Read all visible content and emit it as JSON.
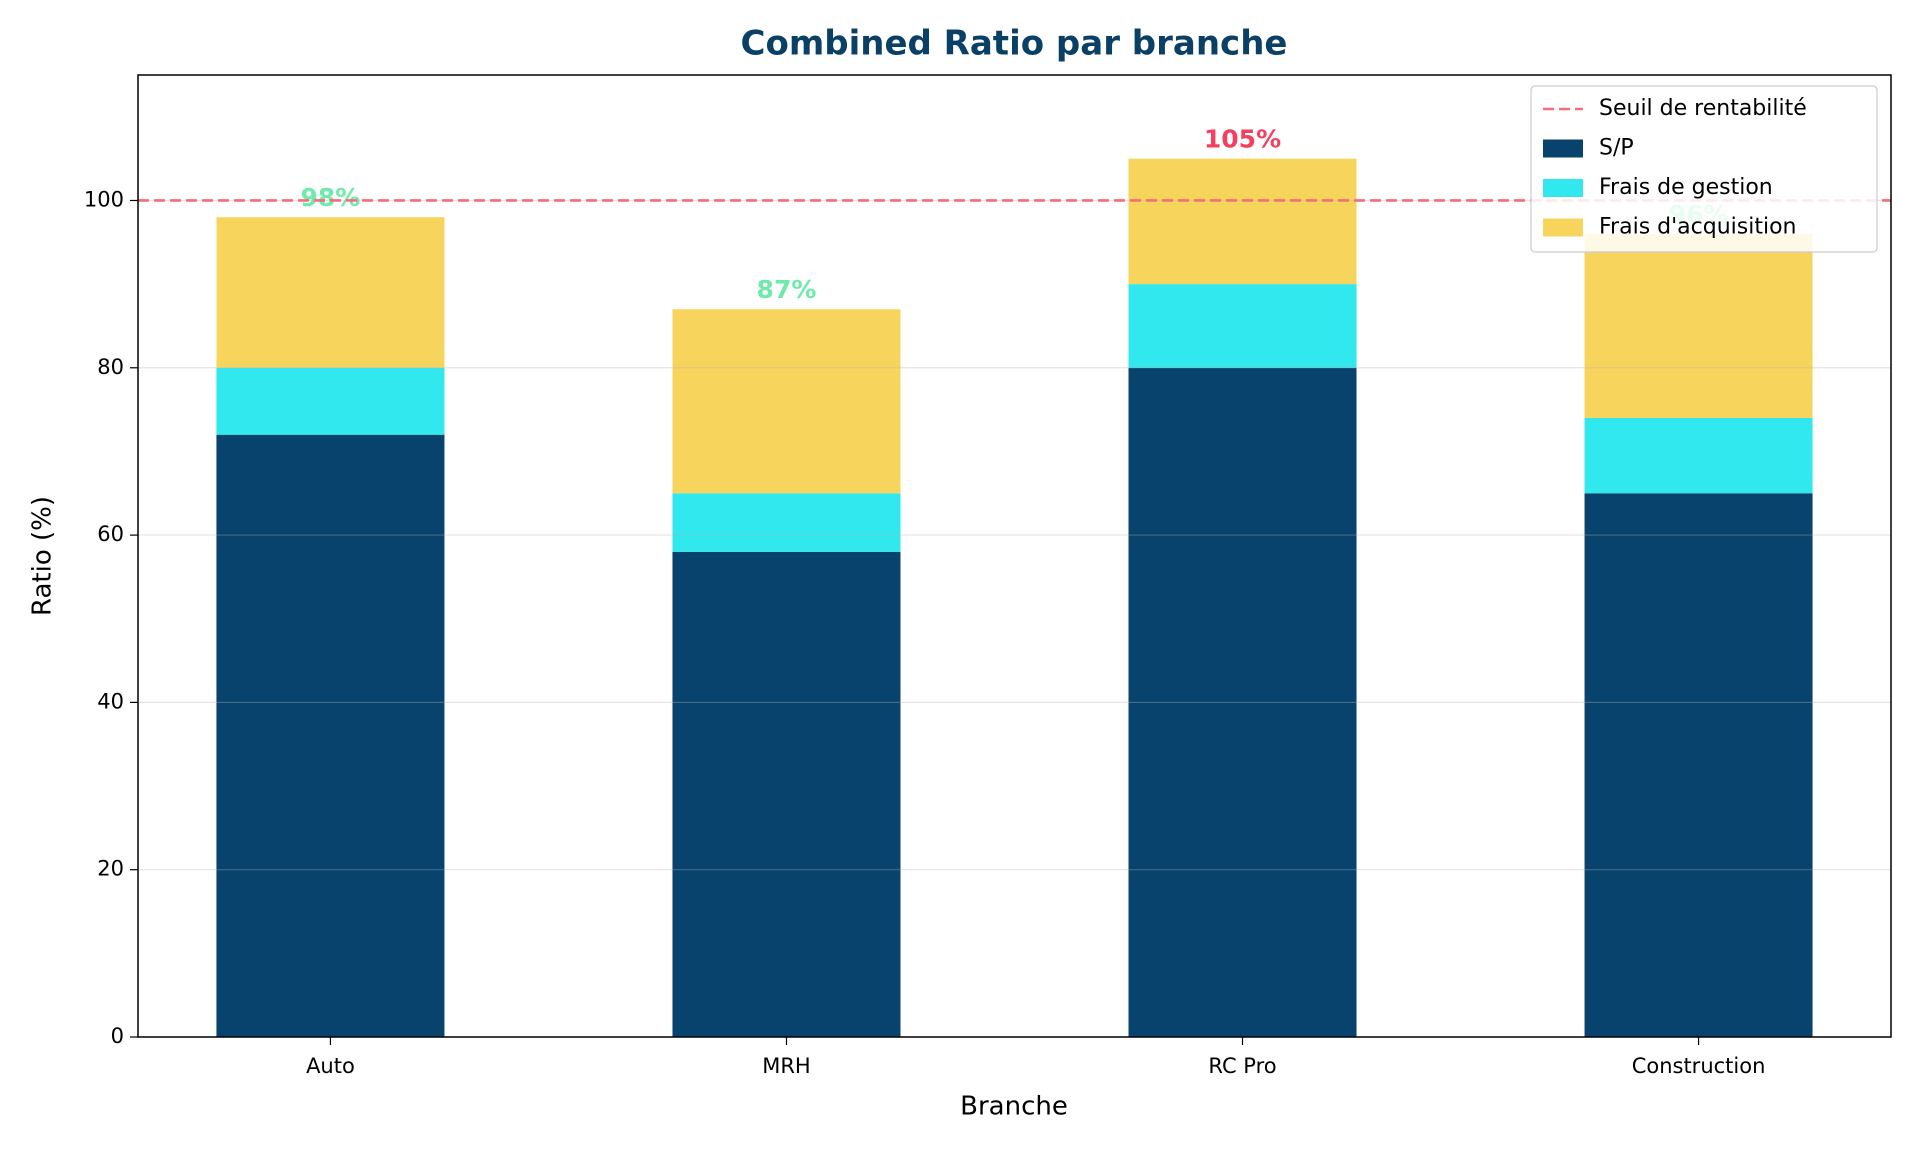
{
  "chart_data": {
    "type": "stacked_bar",
    "title": "Combined Ratio par branche",
    "xlabel": "Branche",
    "ylabel": "Ratio (%)",
    "categories": [
      "Auto",
      "MRH",
      "RC Pro",
      "Construction"
    ],
    "series": [
      {
        "name": "S/P",
        "color": "#08436e",
        "values": [
          72,
          58,
          80,
          65
        ]
      },
      {
        "name": "Frais de gestion",
        "color": "#31e8ef",
        "values": [
          8,
          7,
          10,
          9
        ]
      },
      {
        "name": "Frais d'acquisition",
        "color": "#f7d55d",
        "values": [
          18,
          22,
          15,
          22
        ]
      }
    ],
    "value_labels": [
      "98%",
      "87%",
      "105%",
      "96%"
    ],
    "value_label_colors": {
      "below": "#6eeaaa",
      "above": "#f43f5e"
    },
    "threshold": {
      "name": "Seuil de rentabilité",
      "value": 100,
      "color": "#f56d7a"
    },
    "ylim": [
      0,
      115
    ],
    "yticks": [
      0,
      20,
      40,
      60,
      80,
      100
    ],
    "grid": true,
    "legend": "upper right"
  }
}
